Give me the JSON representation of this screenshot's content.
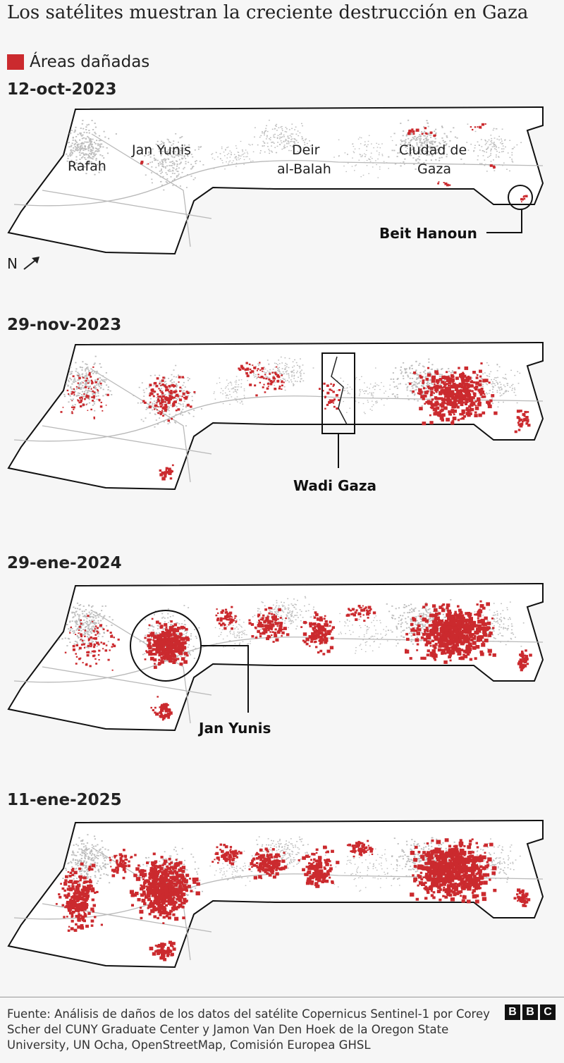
{
  "title": "Los satélites muestran la creciente destrucción en Gaza",
  "legend": {
    "label": "Áreas dañadas",
    "color": "#cb2a2e"
  },
  "north_label": "N",
  "panels": [
    {
      "date": "12-oct-2023",
      "labels": {
        "rafah": "Rafah",
        "jan_yunis": "Jan Yunis",
        "deir_1": "Deir",
        "deir_2": "al-Balah",
        "gaza_1": "Ciudad de",
        "gaza_2": "Gaza"
      },
      "callout": "Beit Hanoun"
    },
    {
      "date": "29-nov-2023",
      "callout": "Wadi Gaza"
    },
    {
      "date": "29-ene-2024",
      "callout": "Jan Yunis"
    },
    {
      "date": "11-ene-2025"
    }
  ],
  "footer": "Fuente: Análisis de daños de los datos del satélite Copernicus Sentinel-1 por Corey Scher del CUNY Graduate Center y Jamon Van Den Hoek de la Oregon State University, UN Ocha, OpenStreetMap, Comisión Europea GHSL",
  "logo": [
    "B",
    "B",
    "C"
  ]
}
